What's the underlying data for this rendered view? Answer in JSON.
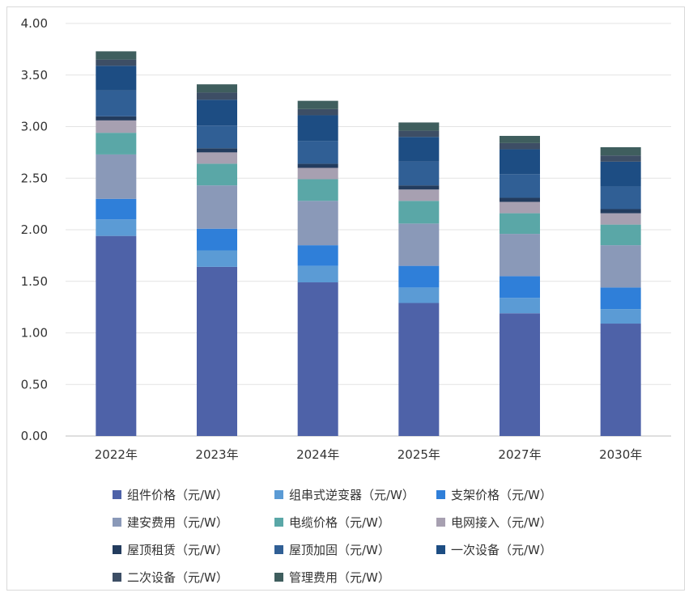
{
  "chart_data": {
    "type": "bar",
    "stacked": true,
    "categories": [
      "2022年",
      "2023年",
      "2024年",
      "2025年",
      "2027年",
      "2030年"
    ],
    "ylim": [
      0,
      4
    ],
    "yticks": [
      "0.00",
      "0.50",
      "1.00",
      "1.50",
      "2.00",
      "2.50",
      "3.00",
      "3.50",
      "4.00"
    ],
    "grid": true,
    "legend_position": "bottom",
    "series": [
      {
        "name": "组件价格（元/W）",
        "color": "#4e62a8",
        "values": [
          1.94,
          1.64,
          1.49,
          1.29,
          1.19,
          1.09
        ]
      },
      {
        "name": "组串式逆变器（元/W）",
        "color": "#5b9bd5",
        "values": [
          0.16,
          0.16,
          0.16,
          0.15,
          0.15,
          0.14
        ]
      },
      {
        "name": "支架价格（元/W）",
        "color": "#2f7fd9",
        "values": [
          0.2,
          0.21,
          0.2,
          0.21,
          0.21,
          0.21
        ]
      },
      {
        "name": "建安费用（元/W）",
        "color": "#8a99b8",
        "values": [
          0.43,
          0.42,
          0.43,
          0.41,
          0.41,
          0.41
        ]
      },
      {
        "name": "电缆价格（元/W）",
        "color": "#5aa7a7",
        "values": [
          0.21,
          0.21,
          0.21,
          0.22,
          0.2,
          0.2
        ]
      },
      {
        "name": "电网接入（元/W）",
        "color": "#a7a0b1",
        "values": [
          0.12,
          0.11,
          0.11,
          0.11,
          0.11,
          0.11
        ]
      },
      {
        "name": "屋顶租赁（元/W）",
        "color": "#233c5e",
        "values": [
          0.04,
          0.04,
          0.04,
          0.04,
          0.04,
          0.04
        ]
      },
      {
        "name": "屋顶加固（元/W）",
        "color": "#305f95",
        "values": [
          0.25,
          0.22,
          0.22,
          0.23,
          0.23,
          0.22
        ]
      },
      {
        "name": "一次设备（元/W）",
        "color": "#1d4d83",
        "values": [
          0.24,
          0.25,
          0.25,
          0.24,
          0.24,
          0.24
        ]
      },
      {
        "name": "二次设备（元/W）",
        "color": "#3d4e65",
        "values": [
          0.06,
          0.07,
          0.06,
          0.06,
          0.06,
          0.06
        ]
      },
      {
        "name": "管理费用（元/W）",
        "color": "#3f5e5e",
        "values": [
          0.08,
          0.08,
          0.08,
          0.08,
          0.07,
          0.08
        ]
      }
    ]
  }
}
